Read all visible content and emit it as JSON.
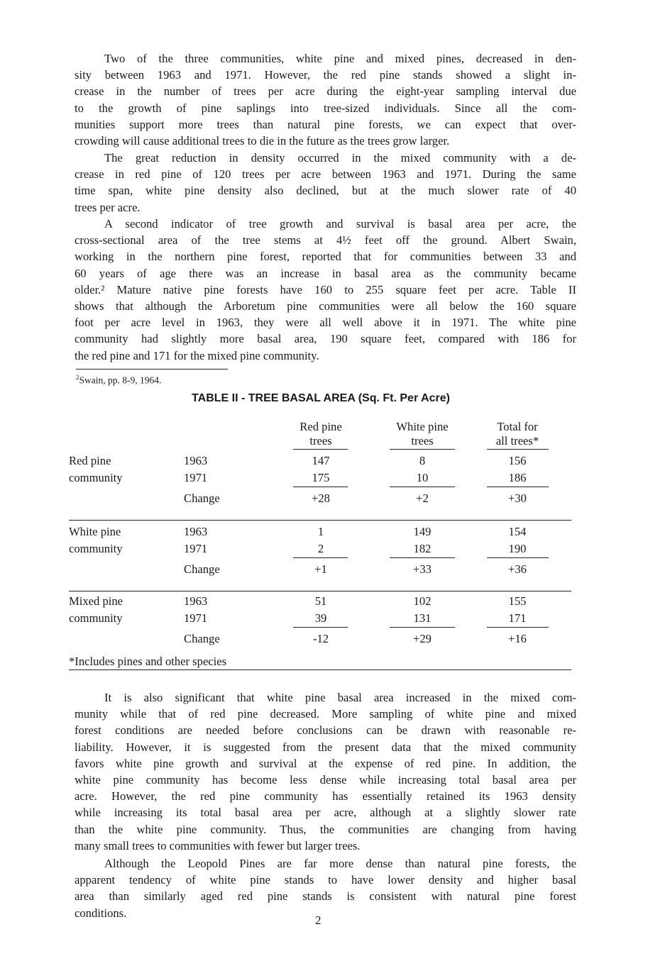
{
  "paragraphs_top": [
    {
      "indent": true,
      "lines": [
        "Two of the three communities, white pine and mixed pines, decreased in den-",
        "sity between 1963 and 1971. However, the red pine stands showed a slight in-",
        "crease in the number of trees per acre during the eight-year sampling interval due",
        "to the growth of pine saplings into tree-sized individuals. Since all the com-",
        "munities support more trees than natural pine forests, we can expect that over-",
        "crowding will cause additional trees to die in the future as the trees grow larger."
      ]
    },
    {
      "indent": true,
      "lines": [
        "The great reduction in density occurred in the mixed community with a de-",
        "crease in red pine of 120 trees per acre between 1963 and 1971. During the same",
        "time span, white pine density also declined, but at the much slower rate of 40",
        "trees per acre."
      ]
    },
    {
      "indent": true,
      "lines": [
        "A second indicator of tree growth and survival is basal area per acre, the",
        "cross-sectional area of the tree stems at 4½ feet off the ground. Albert Swain,",
        "working in the northern pine forest, reported that for communities between 33 and",
        "60 years of age there was an increase in basal area as the community became",
        "older.² Mature native pine forests have 160 to 255 square feet per acre. Table II",
        "shows that although the Arboretum pine communities were all below the 160 square",
        "foot per acre level in 1963, they were all well above it in 1971. The white pine",
        "community had slightly more basal area, 190 square feet, compared with 186 for",
        "the red pine and 171 for the mixed pine community."
      ]
    }
  ],
  "footnote": {
    "mark": "2",
    "text": "Swain, pp. 8-9, 1964."
  },
  "table": {
    "title": "TABLE II - TREE BASAL AREA (Sq. Ft. Per Acre)",
    "headers": [
      [
        "Red pine",
        "trees"
      ],
      [
        "White pine",
        "trees"
      ],
      [
        "Total for",
        "all trees*"
      ]
    ],
    "groups": [
      {
        "label": [
          "Red pine",
          "community"
        ],
        "rows": [
          [
            "1963",
            "147",
            "8",
            "156"
          ],
          [
            "1971",
            "175",
            "10",
            "186"
          ],
          [
            "Change",
            "+28",
            "+2",
            "+30"
          ]
        ]
      },
      {
        "label": [
          "White pine",
          "community"
        ],
        "rows": [
          [
            "1963",
            "1",
            "149",
            "154"
          ],
          [
            "1971",
            "2",
            "182",
            "190"
          ],
          [
            "Change",
            "+1",
            "+33",
            "+36"
          ]
        ]
      },
      {
        "label": [
          "Mixed pine",
          "community"
        ],
        "rows": [
          [
            "1963",
            "51",
            "102",
            "155"
          ],
          [
            "1971",
            "39",
            "131",
            "171"
          ],
          [
            "Change",
            "-12",
            "+29",
            "+16"
          ]
        ]
      }
    ],
    "note": "*Includes pines and other species"
  },
  "paragraphs_bottom": [
    {
      "indent": true,
      "lines": [
        "It is also significant that white pine basal area increased in the mixed com-",
        "munity while that of red pine decreased. More sampling of white pine and mixed",
        "forest conditions are needed before conclusions can be drawn with reasonable re-",
        "liability. However, it is suggested from the present data that the mixed community",
        "favors white pine growth and survival at the expense of red pine. In addition, the",
        "white pine community has become less dense while increasing total basal area per",
        "acre. However, the red pine community has essentially retained its 1963 density",
        "while increasing its total basal area per acre, although at a slightly slower rate",
        "than the white pine community. Thus, the communities are changing from having",
        "many small trees to communities with fewer but larger trees."
      ]
    },
    {
      "indent": true,
      "lines": [
        "Although the Leopold Pines are far more dense than natural pine forests, the",
        "apparent tendency of white pine stands to have lower density and higher basal",
        "area than similarly aged red pine stands is consistent with natural pine forest",
        "conditions."
      ]
    }
  ],
  "page_number": "2"
}
